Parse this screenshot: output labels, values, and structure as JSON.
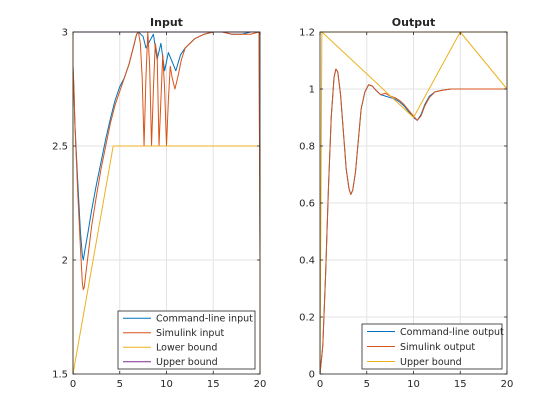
{
  "colors": {
    "command_line": "#0072BD",
    "simulink": "#D95319",
    "lower_bound": "#EDB120",
    "upper_bound": "#7E2F8E",
    "grid": "#e3e3e3",
    "axis": "#262626"
  },
  "chart_data": [
    {
      "type": "line",
      "title": "Input",
      "xlabel": "",
      "ylabel": "",
      "xlim": [
        0,
        20
      ],
      "ylim": [
        1.5,
        3
      ],
      "xticks": [
        "0",
        "5",
        "10",
        "15",
        "20"
      ],
      "yticks": [
        "1.5",
        "2",
        "2.5",
        "3"
      ],
      "grid": true,
      "legend_position": "bottom-right",
      "series": [
        {
          "name": "Command-line input",
          "color_key": "command_line",
          "x": [
            0,
            0.1,
            0.2,
            0.5,
            0.8,
            1.0,
            1.1,
            1.3,
            1.6,
            2.0,
            2.5,
            3.0,
            3.5,
            4.0,
            4.5,
            5.0,
            5.5,
            6.0,
            6.5,
            6.8,
            7.0,
            7.5,
            7.8,
            8.2,
            8.6,
            9.0,
            9.4,
            9.8,
            10.2,
            10.6,
            11.0,
            11.5,
            12.0,
            13.0,
            14.0,
            15.0,
            16.0,
            17.0,
            18.0,
            19.0,
            19.9,
            20.0
          ],
          "y": [
            2.85,
            2.75,
            2.6,
            2.35,
            2.12,
            2.02,
            2.0,
            2.05,
            2.12,
            2.22,
            2.33,
            2.43,
            2.53,
            2.62,
            2.7,
            2.76,
            2.8,
            2.86,
            2.94,
            2.99,
            3.0,
            2.98,
            2.93,
            2.96,
            2.99,
            2.88,
            2.95,
            2.83,
            2.91,
            2.87,
            2.83,
            2.9,
            2.93,
            2.97,
            2.99,
            3.0,
            3.0,
            2.99,
            2.99,
            3.0,
            3.0,
            2.0
          ]
        },
        {
          "name": "Simulink input",
          "color_key": "simulink",
          "x": [
            0,
            0.1,
            0.2,
            0.5,
            0.8,
            1.0,
            1.1,
            1.2,
            1.4,
            1.7,
            2.0,
            2.5,
            3.0,
            3.5,
            4.0,
            4.5,
            5.0,
            5.5,
            6.0,
            6.5,
            6.8,
            7.0,
            7.2,
            7.4,
            7.6,
            7.8,
            8.0,
            8.2,
            8.4,
            8.6,
            8.8,
            9.0,
            9.2,
            9.4,
            9.6,
            9.8,
            10.0,
            10.2,
            10.4,
            10.6,
            10.9,
            11.2,
            11.6,
            12.0,
            13.0,
            14.0,
            15.0,
            16.0,
            17.0,
            18.0,
            19.0,
            19.9,
            20.0
          ],
          "y": [
            2.85,
            2.75,
            2.6,
            2.3,
            2.05,
            1.9,
            1.87,
            1.88,
            1.95,
            2.05,
            2.15,
            2.28,
            2.4,
            2.5,
            2.6,
            2.68,
            2.74,
            2.8,
            2.86,
            2.94,
            2.99,
            3.0,
            2.95,
            2.8,
            2.5,
            2.8,
            3.0,
            2.85,
            2.5,
            2.75,
            2.95,
            2.9,
            2.5,
            2.7,
            2.9,
            2.75,
            2.5,
            2.7,
            2.85,
            2.8,
            2.75,
            2.8,
            2.88,
            2.93,
            2.97,
            2.99,
            3.0,
            3.0,
            2.99,
            2.99,
            2.99,
            3.0,
            2.0
          ]
        },
        {
          "name": "Lower bound",
          "color_key": "lower_bound",
          "x": [
            0,
            0,
            4.3,
            20,
            20
          ],
          "y": [
            3.0,
            1.5,
            2.5,
            2.5,
            1.5
          ]
        },
        {
          "name": "Upper bound",
          "color_key": "upper_bound",
          "x": [
            0,
            20
          ],
          "y": [
            3.0,
            3.0
          ]
        }
      ]
    },
    {
      "type": "line",
      "title": "Output",
      "xlabel": "",
      "ylabel": "",
      "xlim": [
        0,
        20
      ],
      "ylim": [
        0,
        1.2
      ],
      "xticks": [
        "0",
        "5",
        "10",
        "15",
        "20"
      ],
      "yticks": [
        "0",
        "0.2",
        "0.4",
        "0.6",
        "0.8",
        "1",
        "1.2"
      ],
      "grid": true,
      "legend_position": "bottom-right",
      "series": [
        {
          "name": "Command-line output",
          "color_key": "command_line",
          "x": [
            0,
            0.3,
            0.6,
            0.9,
            1.2,
            1.5,
            1.7,
            1.9,
            2.2,
            2.5,
            2.8,
            3.1,
            3.3,
            3.5,
            3.8,
            4.1,
            4.4,
            4.8,
            5.2,
            5.6,
            6.0,
            6.5,
            7.0,
            7.5,
            8.0,
            8.5,
            9.0,
            9.5,
            10.0,
            10.4,
            10.8,
            11.2,
            11.7,
            12.3,
            13.0,
            14.0,
            15.0,
            16.0,
            17.0,
            18.0,
            19.0,
            20.0
          ],
          "y": [
            0.0,
            0.1,
            0.35,
            0.65,
            0.9,
            1.04,
            1.07,
            1.06,
            0.98,
            0.85,
            0.72,
            0.65,
            0.63,
            0.645,
            0.71,
            0.82,
            0.93,
            0.99,
            1.015,
            1.01,
            0.995,
            0.98,
            0.975,
            0.97,
            0.965,
            0.955,
            0.94,
            0.92,
            0.9,
            0.89,
            0.91,
            0.945,
            0.975,
            0.99,
            0.995,
            1.0,
            1.0,
            1.0,
            1.0,
            1.0,
            1.0,
            1.0
          ]
        },
        {
          "name": "Simulink output",
          "color_key": "simulink",
          "x": [
            0,
            0.3,
            0.6,
            0.9,
            1.2,
            1.5,
            1.7,
            1.9,
            2.2,
            2.5,
            2.8,
            3.1,
            3.3,
            3.5,
            3.8,
            4.1,
            4.4,
            4.8,
            5.2,
            5.6,
            6.0,
            6.5,
            7.0,
            7.5,
            8.0,
            8.5,
            9.0,
            9.5,
            10.0,
            10.4,
            10.8,
            11.2,
            11.7,
            12.3,
            13.0,
            14.0,
            15.0,
            16.0,
            17.0,
            18.0,
            19.0,
            20.0
          ],
          "y": [
            0.0,
            0.1,
            0.35,
            0.65,
            0.9,
            1.04,
            1.07,
            1.06,
            0.98,
            0.85,
            0.72,
            0.65,
            0.63,
            0.645,
            0.71,
            0.82,
            0.93,
            0.99,
            1.015,
            1.01,
            0.995,
            0.98,
            0.985,
            0.975,
            0.97,
            0.96,
            0.945,
            0.925,
            0.905,
            0.89,
            0.905,
            0.94,
            0.97,
            0.99,
            0.995,
            1.0,
            1.0,
            1.0,
            1.0,
            1.0,
            1.0,
            1.0
          ]
        },
        {
          "name": "Upper bound",
          "color_key": "lower_bound",
          "x": [
            0,
            0.2,
            10.0,
            15.0,
            20.0,
            20.0
          ],
          "y": [
            0.0,
            1.2,
            0.9,
            1.2,
            1.0,
            1.1
          ]
        },
        {
          "name": "",
          "color_key": "lower_bound",
          "x": [
            0.2,
            20.0,
            20.0
          ],
          "y": [
            1.2,
            1.2,
            1.0
          ]
        }
      ],
      "legend": [
        "Command-line output",
        "Simulink output",
        "Upper bound"
      ]
    }
  ]
}
